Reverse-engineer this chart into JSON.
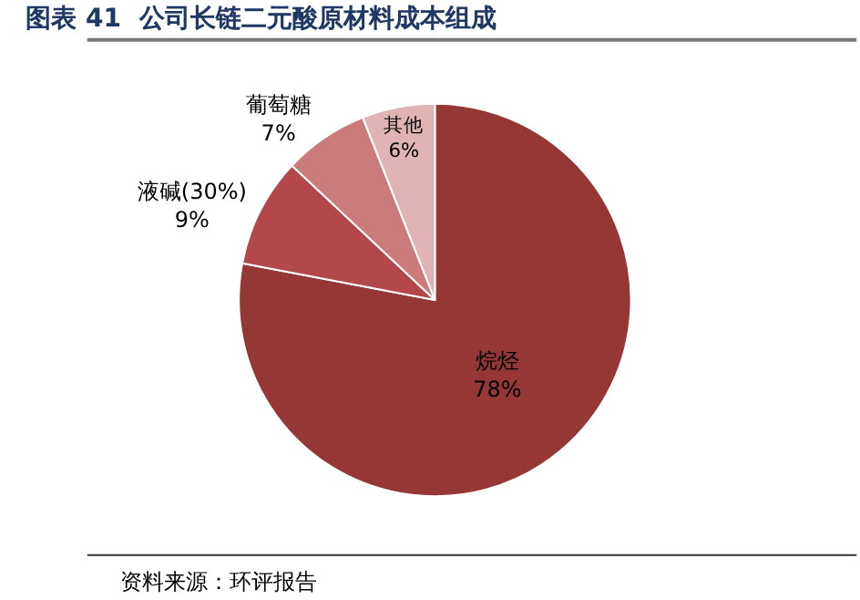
{
  "chart_data": {
    "type": "pie",
    "title": "图表 41  公司长链二元酸原材料成本组成",
    "categories": [
      "烷烃",
      "液碱(30%)",
      "葡萄糖",
      "其他"
    ],
    "values": [
      78,
      9,
      7,
      6
    ],
    "value_labels": [
      "78%",
      "9%",
      "7%",
      "6%"
    ],
    "colors": [
      "#953735",
      "#b2484a",
      "#cb7b7a",
      "#e0b4b4"
    ],
    "legend": false,
    "annotations": [
      "资料来源：环评报告"
    ]
  }
}
